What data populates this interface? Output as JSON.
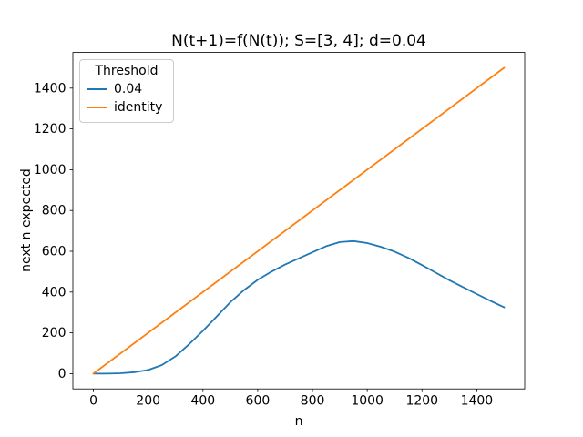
{
  "figure": {
    "title": "N(t+1)=f(N(t)); S=[3, 4]; d=0.04",
    "xlabel": "n",
    "ylabel": "next n expected",
    "background": "#ffffff",
    "text_color": "#000000",
    "spine_color": "#000000"
  },
  "legend": {
    "title": "Threshold",
    "entries": [
      {
        "label": "0.04",
        "color": "#1f77b4"
      },
      {
        "label": "identity",
        "color": "#ff7f0e"
      }
    ]
  },
  "chart_data": {
    "type": "line",
    "title": "N(t+1)=f(N(t)); S=[3, 4]; d=0.04",
    "xlabel": "n",
    "ylabel": "next n expected",
    "xlim": [
      -75,
      1575
    ],
    "ylim": [
      -75,
      1575
    ],
    "xticks": [
      0,
      200,
      400,
      600,
      800,
      1000,
      1200,
      1400
    ],
    "yticks": [
      0,
      200,
      400,
      600,
      800,
      1000,
      1200,
      1400
    ],
    "grid": false,
    "legend_title": "Threshold",
    "legend_position": "upper left",
    "series": [
      {
        "name": "0.04",
        "color": "#1f77b4",
        "x": [
          0,
          50,
          100,
          150,
          200,
          250,
          300,
          350,
          400,
          450,
          500,
          550,
          600,
          650,
          700,
          750,
          800,
          850,
          900,
          950,
          1000,
          1050,
          1100,
          1150,
          1200,
          1250,
          1300,
          1350,
          1400,
          1450,
          1500
        ],
        "y": [
          0,
          0,
          2,
          7,
          18,
          42,
          85,
          145,
          210,
          280,
          350,
          410,
          460,
          500,
          535,
          565,
          595,
          625,
          645,
          650,
          640,
          622,
          598,
          568,
          532,
          495,
          458,
          424,
          390,
          357,
          325
        ]
      },
      {
        "name": "identity",
        "color": "#ff7f0e",
        "x": [
          0,
          1500
        ],
        "y": [
          0,
          1500
        ]
      }
    ]
  }
}
